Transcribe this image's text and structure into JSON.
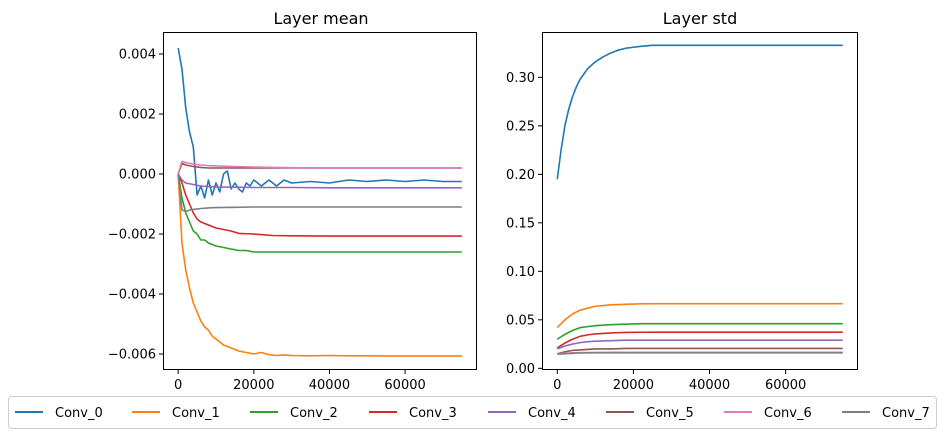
{
  "colors": [
    "#1f77b4",
    "#ff7f0e",
    "#2ca02c",
    "#d62728",
    "#9467bd",
    "#8c564b",
    "#e377c2",
    "#7f7f7f"
  ],
  "legend": [
    "Conv_0",
    "Conv_1",
    "Conv_2",
    "Conv_3",
    "Conv_4",
    "Conv_5",
    "Conv_6",
    "Conv_7"
  ],
  "chart_data": [
    {
      "type": "line",
      "title": "Layer mean",
      "xlabel": "",
      "ylabel": "",
      "xlim": [
        -3750,
        78750
      ],
      "ylim": [
        -0.0065,
        0.0047
      ],
      "xticks": [
        0,
        20000,
        40000,
        60000
      ],
      "xtick_labels": [
        "0",
        "20000",
        "40000",
        "60000"
      ],
      "yticks": [
        -0.006,
        -0.004,
        -0.002,
        0.0,
        0.002,
        0.004
      ],
      "ytick_labels": [
        "−0.006",
        "−0.004",
        "−0.002",
        "0.000",
        "0.002",
        "0.004"
      ],
      "series": [
        {
          "name": "Conv_0",
          "x": [
            0,
            1000,
            2000,
            3000,
            4000,
            5000,
            6000,
            7000,
            8000,
            9000,
            10000,
            11000,
            12000,
            13000,
            14000,
            15000,
            16000,
            17000,
            18000,
            19000,
            20000,
            22000,
            24000,
            26000,
            28000,
            30000,
            35000,
            40000,
            45000,
            50000,
            55000,
            60000,
            65000,
            70000,
            75000
          ],
          "y": [
            0.0042,
            0.0035,
            0.0022,
            0.0014,
            0.0009,
            -0.0007,
            -0.0004,
            -0.0008,
            -0.0002,
            -0.0007,
            -0.0003,
            -0.0006,
            0.0,
            0.0001,
            -0.0005,
            -0.0003,
            -0.0005,
            -0.0006,
            -0.0003,
            -0.0004,
            -0.0002,
            -0.0004,
            -0.0002,
            -0.0004,
            -0.0002,
            -0.0003,
            -0.00025,
            -0.0003,
            -0.0002,
            -0.00025,
            -0.0002,
            -0.00025,
            -0.0002,
            -0.00025,
            -0.00025
          ]
        },
        {
          "name": "Conv_1",
          "x": [
            0,
            1000,
            2000,
            3000,
            4000,
            5000,
            6000,
            7000,
            8000,
            9000,
            10000,
            12000,
            14000,
            16000,
            18000,
            20000,
            22000,
            24000,
            26000,
            28000,
            30000,
            35000,
            40000,
            45000,
            50000,
            60000,
            70000,
            75000
          ],
          "y": [
            0.0,
            -0.0023,
            -0.0032,
            -0.0038,
            -0.0043,
            -0.0046,
            -0.0049,
            -0.0051,
            -0.0052,
            -0.0054,
            -0.0055,
            -0.0057,
            -0.0058,
            -0.0059,
            -0.00595,
            -0.006,
            -0.00595,
            -0.00602,
            -0.00605,
            -0.00603,
            -0.00605,
            -0.00606,
            -0.00605,
            -0.00606,
            -0.00606,
            -0.00607,
            -0.00607,
            -0.00607
          ]
        },
        {
          "name": "Conv_2",
          "x": [
            0,
            1000,
            2000,
            3000,
            4000,
            5000,
            6000,
            7000,
            8000,
            10000,
            12000,
            14000,
            16000,
            18000,
            20000,
            25000,
            30000,
            40000,
            50000,
            60000,
            70000,
            75000
          ],
          "y": [
            0.0,
            -0.0008,
            -0.0013,
            -0.0016,
            -0.0019,
            -0.002,
            -0.0022,
            -0.0022,
            -0.0023,
            -0.0024,
            -0.00245,
            -0.0025,
            -0.00255,
            -0.00255,
            -0.0026,
            -0.0026,
            -0.0026,
            -0.0026,
            -0.0026,
            -0.0026,
            -0.0026,
            -0.0026
          ]
        },
        {
          "name": "Conv_3",
          "x": [
            0,
            1000,
            2000,
            3000,
            4000,
            5000,
            6000,
            8000,
            10000,
            12000,
            14000,
            16000,
            20000,
            25000,
            30000,
            40000,
            50000,
            60000,
            70000,
            75000
          ],
          "y": [
            0.0,
            -0.0003,
            -0.0007,
            -0.001,
            -0.0013,
            -0.0015,
            -0.0016,
            -0.0017,
            -0.0018,
            -0.00185,
            -0.0019,
            -0.00198,
            -0.002,
            -0.00205,
            -0.00206,
            -0.00207,
            -0.00207,
            -0.00207,
            -0.00207,
            -0.00207
          ]
        },
        {
          "name": "Conv_4",
          "x": [
            0,
            1000,
            2000,
            4000,
            6000,
            8000,
            10000,
            15000,
            20000,
            30000,
            40000,
            50000,
            60000,
            70000,
            75000
          ],
          "y": [
            0.0,
            -0.0002,
            -0.0003,
            -0.00035,
            -0.0004,
            -0.00042,
            -0.00043,
            -0.00044,
            -0.00045,
            -0.00045,
            -0.00046,
            -0.00046,
            -0.00046,
            -0.00046,
            -0.00046
          ]
        },
        {
          "name": "Conv_5",
          "x": [
            0,
            1000,
            2000,
            4000,
            6000,
            8000,
            10000,
            15000,
            20000,
            30000,
            40000,
            50000,
            60000,
            70000,
            75000
          ],
          "y": [
            0.0,
            0.00035,
            0.0003,
            0.00025,
            0.00022,
            0.0002,
            0.0002,
            0.0002,
            0.0002,
            0.0002,
            0.0002,
            0.0002,
            0.0002,
            0.0002,
            0.0002
          ]
        },
        {
          "name": "Conv_6",
          "x": [
            0,
            1000,
            2000,
            4000,
            6000,
            8000,
            10000,
            15000,
            20000,
            30000,
            40000,
            50000,
            60000,
            70000,
            75000
          ],
          "y": [
            0.0,
            0.00042,
            0.00038,
            0.00033,
            0.0003,
            0.00028,
            0.00027,
            0.00025,
            0.00023,
            0.00021,
            0.0002,
            0.0002,
            0.0002,
            0.0002,
            0.0002
          ]
        },
        {
          "name": "Conv_7",
          "x": [
            0,
            1000,
            2000,
            3000,
            4000,
            6000,
            8000,
            10000,
            15000,
            20000,
            30000,
            40000,
            50000,
            60000,
            70000,
            75000
          ],
          "y": [
            0.0,
            -0.0012,
            -0.00125,
            -0.0012,
            -0.00118,
            -0.00115,
            -0.00113,
            -0.00112,
            -0.00111,
            -0.0011,
            -0.0011,
            -0.0011,
            -0.0011,
            -0.0011,
            -0.0011,
            -0.0011
          ]
        }
      ]
    },
    {
      "type": "line",
      "title": "Layer std",
      "xlabel": "",
      "ylabel": "",
      "xlim": [
        -3750,
        78750
      ],
      "ylim": [
        -0.0007,
        0.3457
      ],
      "xticks": [
        0,
        20000,
        40000,
        60000
      ],
      "xtick_labels": [
        "0",
        "20000",
        "40000",
        "60000"
      ],
      "yticks": [
        0.0,
        0.05,
        0.1,
        0.15,
        0.2,
        0.25,
        0.3
      ],
      "ytick_labels": [
        "0.00",
        "0.05",
        "0.10",
        "0.15",
        "0.20",
        "0.25",
        "0.30"
      ],
      "series": [
        {
          "name": "Conv_0",
          "x": [
            0,
            1000,
            2000,
            3000,
            4000,
            5000,
            6000,
            8000,
            10000,
            12000,
            14000,
            16000,
            18000,
            20000,
            22000,
            25000,
            30000,
            40000,
            50000,
            60000,
            70000,
            75000
          ],
          "y": [
            0.195,
            0.225,
            0.25,
            0.267,
            0.28,
            0.29,
            0.298,
            0.309,
            0.316,
            0.321,
            0.325,
            0.328,
            0.33,
            0.331,
            0.332,
            0.333,
            0.333,
            0.333,
            0.333,
            0.333,
            0.333,
            0.333
          ]
        },
        {
          "name": "Conv_1",
          "x": [
            0,
            2000,
            4000,
            6000,
            8000,
            10000,
            14000,
            18000,
            22000,
            26000,
            30000,
            40000,
            50000,
            60000,
            70000,
            75000
          ],
          "y": [
            0.042,
            0.05,
            0.056,
            0.06,
            0.062,
            0.064,
            0.0655,
            0.066,
            0.0665,
            0.0666,
            0.0666,
            0.0666,
            0.0666,
            0.0666,
            0.0666,
            0.0666
          ]
        },
        {
          "name": "Conv_2",
          "x": [
            0,
            2000,
            4000,
            6000,
            8000,
            10000,
            14000,
            18000,
            22000,
            26000,
            30000,
            40000,
            50000,
            60000,
            70000,
            75000
          ],
          "y": [
            0.03,
            0.035,
            0.039,
            0.042,
            0.043,
            0.044,
            0.045,
            0.0455,
            0.046,
            0.046,
            0.046,
            0.046,
            0.046,
            0.046,
            0.046,
            0.046
          ]
        },
        {
          "name": "Conv_3",
          "x": [
            0,
            2000,
            4000,
            6000,
            8000,
            10000,
            14000,
            18000,
            22000,
            26000,
            30000,
            40000,
            50000,
            60000,
            70000,
            75000
          ],
          "y": [
            0.021,
            0.026,
            0.03,
            0.033,
            0.0345,
            0.0355,
            0.0365,
            0.037,
            0.0372,
            0.0373,
            0.0373,
            0.0373,
            0.0373,
            0.0373,
            0.0373,
            0.0373
          ]
        },
        {
          "name": "Conv_4",
          "x": [
            0,
            2000,
            4000,
            6000,
            8000,
            10000,
            14000,
            18000,
            22000,
            26000,
            30000,
            40000,
            50000,
            60000,
            70000,
            75000
          ],
          "y": [
            0.02,
            0.023,
            0.025,
            0.0265,
            0.0275,
            0.028,
            0.0285,
            0.029,
            0.029,
            0.029,
            0.029,
            0.029,
            0.029,
            0.029,
            0.029,
            0.029
          ]
        },
        {
          "name": "Conv_5",
          "x": [
            0,
            2000,
            4000,
            6000,
            8000,
            10000,
            14000,
            18000,
            22000,
            30000,
            40000,
            50000,
            60000,
            70000,
            75000
          ],
          "y": [
            0.015,
            0.017,
            0.0185,
            0.019,
            0.0195,
            0.02,
            0.02,
            0.0205,
            0.0205,
            0.0205,
            0.0205,
            0.0205,
            0.0205,
            0.0205,
            0.0205
          ]
        },
        {
          "name": "Conv_6",
          "x": [
            0,
            2000,
            4000,
            6000,
            8000,
            10000,
            14000,
            18000,
            22000,
            30000,
            40000,
            50000,
            60000,
            70000,
            75000
          ],
          "y": [
            0.015,
            0.0155,
            0.016,
            0.0162,
            0.0163,
            0.0164,
            0.0165,
            0.0165,
            0.0165,
            0.0165,
            0.0165,
            0.0165,
            0.0165,
            0.0165,
            0.0165
          ]
        },
        {
          "name": "Conv_7",
          "x": [
            0,
            2000,
            4000,
            6000,
            8000,
            10000,
            14000,
            18000,
            22000,
            30000,
            40000,
            50000,
            60000,
            70000,
            75000
          ],
          "y": [
            0.0145,
            0.015,
            0.0155,
            0.0158,
            0.016,
            0.016,
            0.016,
            0.016,
            0.016,
            0.016,
            0.016,
            0.016,
            0.016,
            0.016,
            0.016
          ]
        }
      ]
    }
  ]
}
